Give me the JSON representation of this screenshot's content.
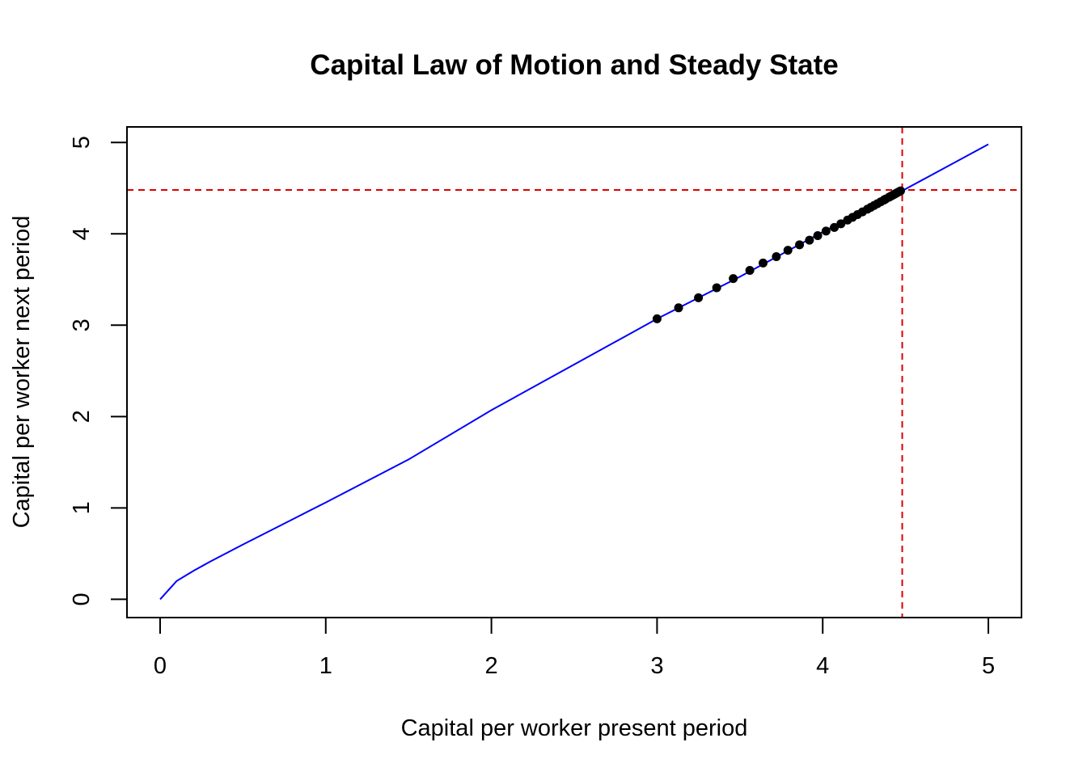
{
  "chart_data": {
    "type": "line",
    "title": "Capital Law of Motion and Steady State",
    "xlabel": "Capital per worker present period",
    "ylabel": "Capital per worker next period",
    "xlim": [
      -0.2,
      5.2
    ],
    "ylim": [
      -0.2,
      5.17
    ],
    "x_ticks": [
      "0",
      "1",
      "2",
      "3",
      "4",
      "5"
    ],
    "y_ticks": [
      "0",
      "1",
      "2",
      "3",
      "4",
      "5"
    ],
    "grid": false,
    "colors": {
      "law_of_motion": "#0000ff",
      "steady_state": "#dd0000",
      "iterates": "#000000"
    },
    "law_of_motion": {
      "x": [
        0,
        0.1,
        0.2,
        0.3,
        0.5,
        0.75,
        1.0,
        1.5,
        2.0,
        2.5,
        3.0,
        3.5,
        4.0,
        4.5,
        5.0
      ],
      "y": [
        0,
        0.2,
        0.31,
        0.41,
        0.6,
        0.83,
        1.06,
        1.53,
        2.07,
        2.57,
        3.07,
        3.53,
        4.02,
        4.49,
        4.98
      ]
    },
    "steady_state": {
      "x": 4.48,
      "y": 4.48
    },
    "iterates": {
      "x": [
        3.0,
        3.13,
        3.25,
        3.36,
        3.46,
        3.56,
        3.64,
        3.72,
        3.79,
        3.86,
        3.92,
        3.97,
        4.02,
        4.07,
        4.11,
        4.15,
        4.18,
        4.21,
        4.24,
        4.27,
        4.29,
        4.31,
        4.33,
        4.35,
        4.37,
        4.38,
        4.4,
        4.41,
        4.42,
        4.43,
        4.44,
        4.45,
        4.46,
        4.47
      ],
      "y": [
        3.07,
        3.19,
        3.3,
        3.41,
        3.51,
        3.6,
        3.68,
        3.75,
        3.82,
        3.88,
        3.93,
        3.98,
        4.03,
        4.07,
        4.11,
        4.15,
        4.18,
        4.21,
        4.24,
        4.27,
        4.29,
        4.31,
        4.33,
        4.35,
        4.37,
        4.38,
        4.4,
        4.41,
        4.42,
        4.43,
        4.44,
        4.45,
        4.46,
        4.47
      ]
    }
  }
}
